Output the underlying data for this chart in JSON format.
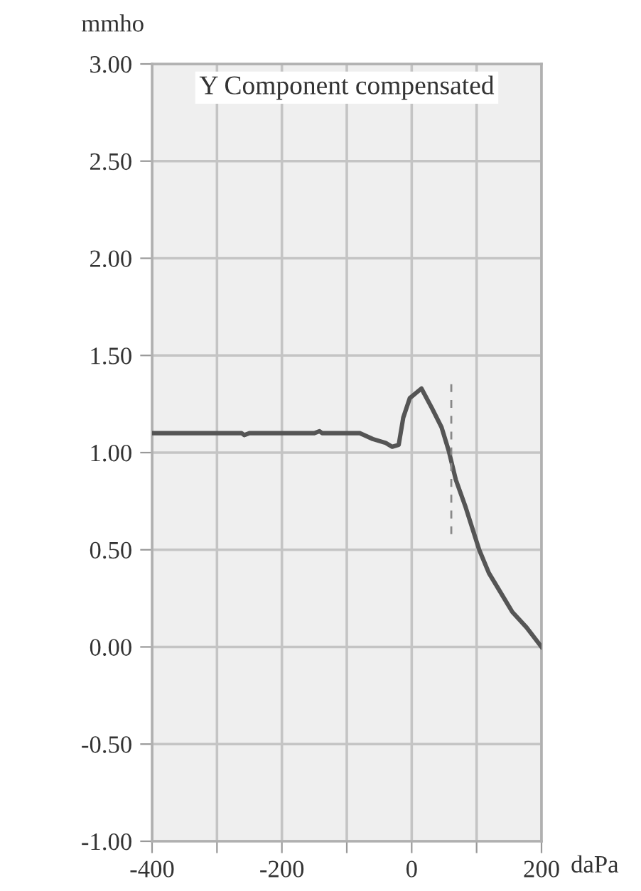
{
  "chart_data": {
    "type": "line",
    "title": "Y Component compensated",
    "xlabel": "daPa",
    "ylabel": "mmho",
    "xlim": [
      -400,
      200
    ],
    "xticks": [
      -400,
      {
        "value": -300,
        "label": null
      },
      -200,
      {
        "value": -100,
        "label": null
      },
      0,
      {
        "value": 100,
        "label": null
      },
      200
    ],
    "ylim": [
      -1.0,
      3.0
    ],
    "yticks": [
      {
        "value": -1.0,
        "label": "-1.00"
      },
      {
        "value": -0.5,
        "label": "-0.50"
      },
      {
        "value": 0.0,
        "label": "0.00"
      },
      {
        "value": 0.5,
        "label": "0.50"
      },
      {
        "value": 1.0,
        "label": "1.00"
      },
      {
        "value": 1.5,
        "label": "1.50"
      },
      {
        "value": 2.0,
        "label": "2.00"
      },
      {
        "value": 2.5,
        "label": "2.50"
      },
      {
        "value": 3.0,
        "label": "3.00"
      }
    ],
    "grid": true,
    "legend": false,
    "marker": "none",
    "series": [
      {
        "color": "#555555",
        "line_style": "solid",
        "x": [
          -400,
          -300,
          -262,
          -258,
          -250,
          -200,
          -150,
          -142,
          -138,
          -120,
          -80,
          -60,
          -40,
          -30,
          -20,
          -13,
          -3,
          15,
          31,
          46,
          57,
          68,
          83,
          104,
          119,
          137,
          155,
          177,
          200
        ],
        "values": [
          1.1,
          1.1,
          1.1,
          1.09,
          1.1,
          1.1,
          1.1,
          1.11,
          1.1,
          1.1,
          1.1,
          1.07,
          1.05,
          1.03,
          1.04,
          1.18,
          1.28,
          1.33,
          1.23,
          1.13,
          1.01,
          0.86,
          0.72,
          0.5,
          0.38,
          0.28,
          0.18,
          0.1,
          0.0
        ]
      },
      {
        "color": "#888888",
        "line_style": "dashed",
        "x": [
          61,
          61
        ],
        "values": [
          0.58,
          1.37
        ]
      }
    ]
  }
}
